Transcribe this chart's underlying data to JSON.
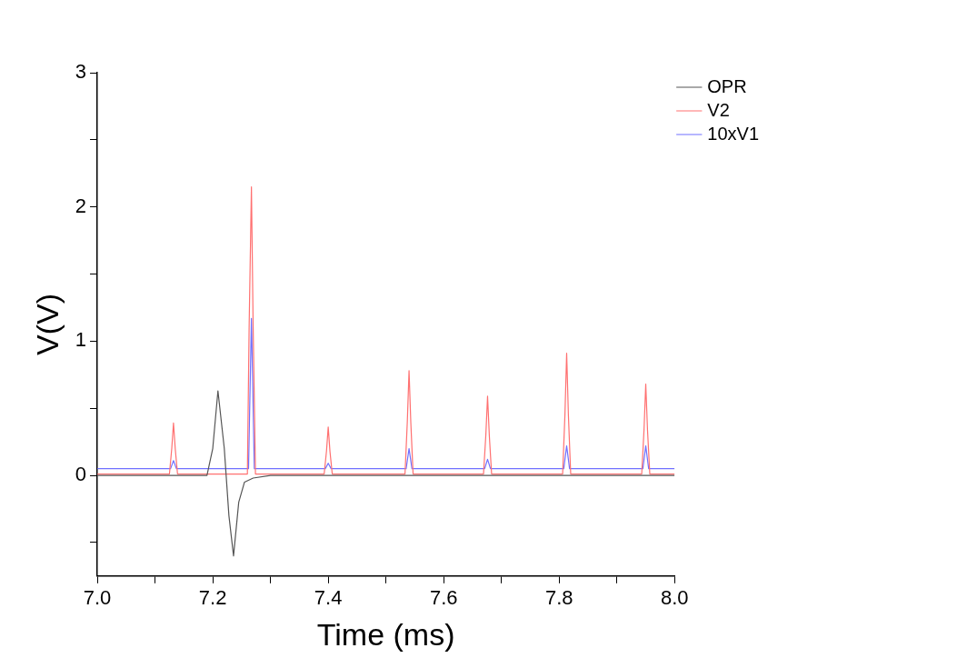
{
  "chart_data": {
    "type": "line",
    "xlabel": "Time (ms)",
    "ylabel": "V(V)",
    "xlim": [
      7,
      8
    ],
    "ylim": [
      -0.75,
      3
    ],
    "xticks": [
      {
        "value": 7,
        "label": "7.0"
      },
      {
        "value": 7.1,
        "label": null
      },
      {
        "value": 7.2,
        "label": "7.2"
      },
      {
        "value": 7.3,
        "label": null
      },
      {
        "value": 7.4,
        "label": "7.4"
      },
      {
        "value": 7.5,
        "label": null
      },
      {
        "value": 7.6,
        "label": "7.6"
      },
      {
        "value": 7.7,
        "label": null
      },
      {
        "value": 7.8,
        "label": "7.8"
      },
      {
        "value": 7.9,
        "label": null
      },
      {
        "value": 8,
        "label": "8.0"
      }
    ],
    "yticks": [
      {
        "value": -0.5,
        "label": null
      },
      0,
      {
        "value": 0.5,
        "label": null
      },
      1,
      {
        "value": 1.5,
        "label": null
      },
      2,
      {
        "value": 2.5,
        "label": null
      },
      3
    ],
    "grid": false,
    "legend": "top right",
    "marker": "none",
    "line_style": "solid",
    "series": [
      {
        "name": "OPR",
        "color": "#555555",
        "x": [
          7.0,
          7.19,
          7.2,
          7.209,
          7.22,
          7.228,
          7.236,
          7.245,
          7.255,
          7.27,
          7.3,
          8.0
        ],
        "values": [
          0,
          0,
          0.2,
          0.63,
          0.2,
          -0.3,
          -0.6,
          -0.2,
          -0.05,
          -0.02,
          0,
          0
        ]
      },
      {
        "name": "V2",
        "color": "#ff7070",
        "x": [
          7.0,
          7.125,
          7.129,
          7.132,
          7.135,
          7.139,
          7.26,
          7.263,
          7.267,
          7.27,
          7.274,
          7.393,
          7.397,
          7.4,
          7.403,
          7.407,
          7.533,
          7.537,
          7.54,
          7.543,
          7.547,
          7.669,
          7.673,
          7.676,
          7.679,
          7.683,
          7.806,
          7.81,
          7.813,
          7.816,
          7.82,
          7.943,
          7.947,
          7.95,
          7.953,
          7.957,
          8.0
        ],
        "values": [
          0.01,
          0.01,
          0.2,
          0.39,
          0.2,
          0.01,
          0.01,
          1.1,
          2.15,
          1.1,
          0.01,
          0.01,
          0.18,
          0.36,
          0.18,
          0.01,
          0.01,
          0.4,
          0.78,
          0.4,
          0.01,
          0.01,
          0.3,
          0.59,
          0.3,
          0.01,
          0.01,
          0.45,
          0.91,
          0.45,
          0.01,
          0.01,
          0.34,
          0.68,
          0.34,
          0.01,
          0.01
        ]
      },
      {
        "name": "10xV1",
        "color": "#7070ff",
        "x": [
          7.0,
          7.127,
          7.132,
          7.137,
          7.262,
          7.267,
          7.272,
          7.395,
          7.4,
          7.405,
          7.535,
          7.54,
          7.545,
          7.671,
          7.676,
          7.681,
          7.808,
          7.813,
          7.818,
          7.945,
          7.95,
          7.955,
          8.0
        ],
        "values": [
          0.05,
          0.05,
          0.11,
          0.05,
          0.05,
          1.17,
          0.05,
          0.05,
          0.09,
          0.05,
          0.05,
          0.2,
          0.05,
          0.05,
          0.12,
          0.05,
          0.05,
          0.22,
          0.05,
          0.05,
          0.22,
          0.05,
          0.05
        ]
      }
    ]
  }
}
